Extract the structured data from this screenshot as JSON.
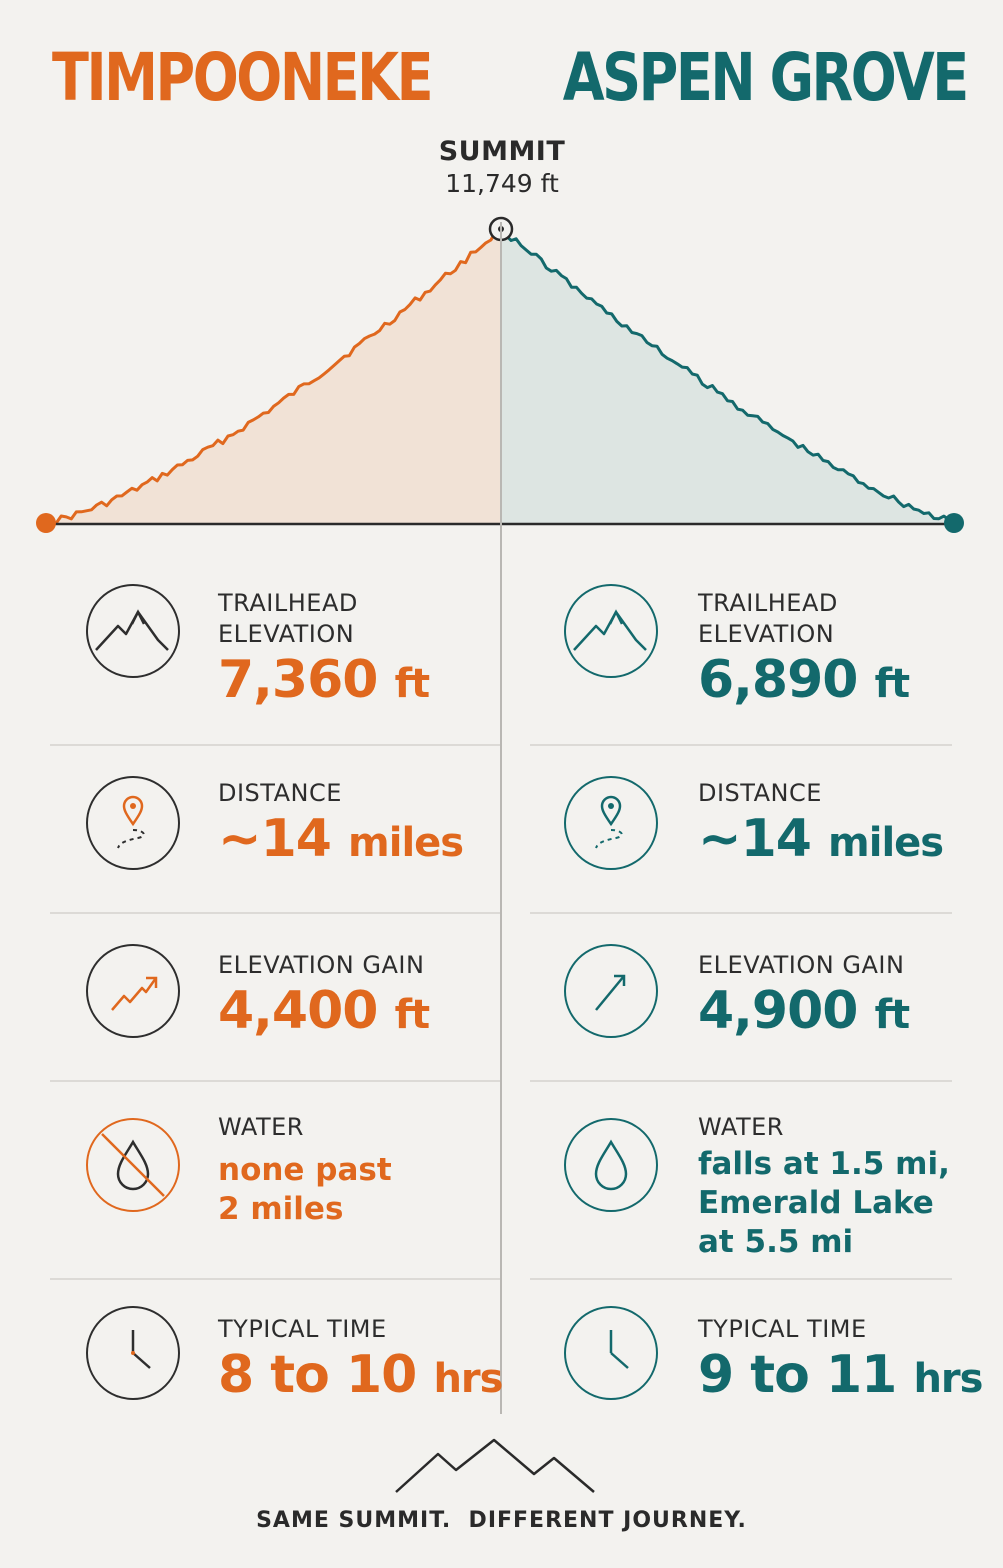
{
  "titles": {
    "left": "TIMPOONEKE",
    "right": "ASPEN GROVE"
  },
  "summit": {
    "label": "SUMMIT",
    "elevation": "11,749 ft"
  },
  "colors": {
    "left": "#e0681e",
    "right": "#13696c",
    "background": "#f3f2ef",
    "ink": "#2a2a2a"
  },
  "left": {
    "rows": [
      {
        "label_line1": "TRAILHEAD",
        "label_line2": "ELEVATION",
        "value": "7,360",
        "unit": "ft",
        "icon": "mountain-icon"
      },
      {
        "label_line1": "DISTANCE",
        "value": "~14",
        "unit": "miles",
        "icon": "map-pin-icon"
      },
      {
        "label_line1": "ELEVATION GAIN",
        "value": "4,400",
        "unit": "ft",
        "icon": "trend-up-icon"
      },
      {
        "label_line1": "WATER",
        "value_line1": "none past",
        "value_line2": "2 miles",
        "icon": "no-water-icon"
      },
      {
        "label_line1": "TYPICAL TIME",
        "value": "8 to 10",
        "unit": "hrs",
        "icon": "clock-icon"
      }
    ]
  },
  "right": {
    "rows": [
      {
        "label_line1": "TRAILHEAD",
        "label_line2": "ELEVATION",
        "value": "6,890",
        "unit": "ft",
        "icon": "mountain-icon"
      },
      {
        "label_line1": "DISTANCE",
        "value": "~14",
        "unit": "miles",
        "icon": "map-pin-icon"
      },
      {
        "label_line1": "ELEVATION GAIN",
        "value": "4,900",
        "unit": "ft",
        "icon": "arrow-up-right-icon"
      },
      {
        "label_line1": "WATER",
        "value_line1": "falls at 1.5 mi,",
        "value_line2": "Emerald Lake",
        "value_line3": "at 5.5 mi",
        "icon": "water-drop-icon"
      },
      {
        "label_line1": "TYPICAL TIME",
        "value": "9 to 11",
        "unit": "hrs",
        "icon": "clock-icon"
      }
    ]
  },
  "footer": {
    "text": "SAME SUMMIT.  DIFFERENT JOURNEY.",
    "icon": "mountain-range-icon"
  }
}
